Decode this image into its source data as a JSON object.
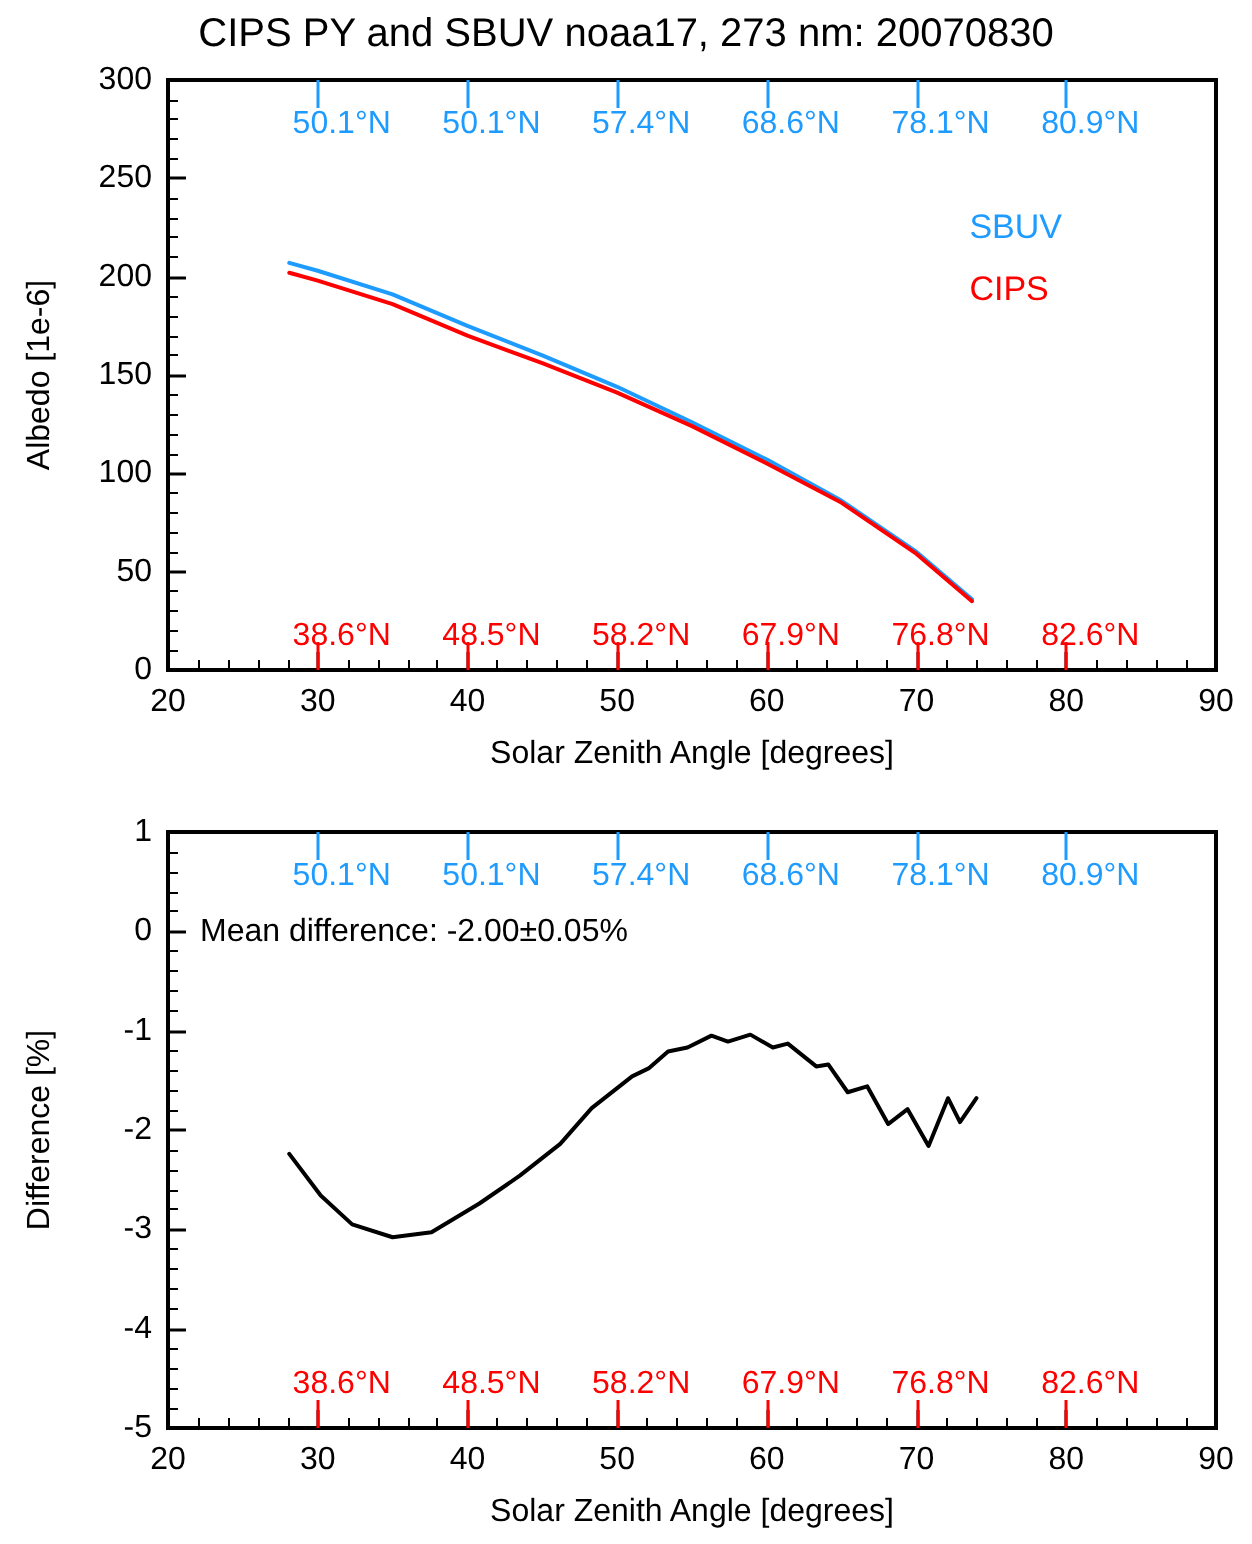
{
  "chart_data": [
    {
      "type": "line",
      "title": "CIPS PY and SBUV noaa17, 273 nm: 20070830",
      "xlabel": "Solar Zenith Angle [degrees]",
      "ylabel": "Albedo [1e-6]",
      "xlim": [
        20,
        90
      ],
      "xticks": [
        20,
        30,
        40,
        50,
        60,
        70,
        80,
        90
      ],
      "ylim": [
        0,
        300
      ],
      "yticks": [
        0,
        50,
        100,
        150,
        200,
        250,
        300
      ],
      "annotations": [
        "50.1°N",
        "50.1°N",
        "57.4°N",
        "68.6°N",
        "78.1°N",
        "80.9°N",
        "38.6°N",
        "48.5°N",
        "58.2°N",
        "67.9°N",
        "76.8°N",
        "82.6°N"
      ],
      "legend": "top right",
      "grid": false,
      "marker": "none",
      "line_style": "solid",
      "series": [
        {
          "name": "SBUV",
          "color": "#1e9bff",
          "x": [
            28.1,
            30,
            35,
            40,
            45,
            50,
            55,
            60,
            65,
            70,
            73.7
          ],
          "values": [
            207,
            203,
            191,
            175,
            160,
            144,
            126,
            107,
            86,
            60,
            36
          ]
        },
        {
          "name": "CIPS",
          "color": "#ff0000",
          "x": [
            28.1,
            30,
            35,
            40,
            45,
            50,
            55,
            60,
            65,
            70,
            73.7
          ],
          "values": [
            202,
            198,
            186,
            170,
            156,
            141,
            124,
            105,
            85,
            59,
            35
          ]
        }
      ]
    },
    {
      "type": "line",
      "xlabel": "Solar Zenith Angle [degrees]",
      "ylabel": "Difference [%]",
      "xlim": [
        20,
        90
      ],
      "xticks": [
        20,
        30,
        40,
        50,
        60,
        70,
        80,
        90
      ],
      "ylim": [
        -5,
        1
      ],
      "yticks": [
        -5,
        -4,
        -3,
        -2,
        -1,
        0,
        1
      ],
      "annotations": [
        "50.1°N",
        "50.1°N",
        "57.4°N",
        "68.6°N",
        "78.1°N",
        "80.9°N",
        "38.6°N",
        "48.5°N",
        "58.2°N",
        "67.9°N",
        "76.8°N",
        "82.6°N",
        "Mean difference: -2.00±0.05%"
      ],
      "grid": false,
      "marker": "none",
      "line_style": "solid",
      "series": [
        {
          "color": "#000000",
          "x": [
            28.1,
            30.2,
            32.3,
            35.0,
            37.6,
            40.8,
            43.5,
            46.2,
            48.3,
            51.0,
            52.1,
            53.4,
            54.7,
            56.3,
            57.4,
            58.9,
            60.4,
            61.4,
            63.3,
            64.1,
            65.4,
            66.7,
            68.1,
            69.4,
            70.8,
            72.1,
            72.9,
            74.0
          ],
          "values": [
            -2.24,
            -2.66,
            -2.95,
            -3.08,
            -3.03,
            -2.74,
            -2.46,
            -2.14,
            -1.78,
            -1.46,
            -1.38,
            -1.21,
            -1.17,
            -1.05,
            -1.11,
            -1.04,
            -1.17,
            -1.13,
            -1.36,
            -1.34,
            -1.62,
            -1.56,
            -1.94,
            -1.79,
            -2.16,
            -1.68,
            -1.92,
            -1.68
          ]
        }
      ]
    }
  ]
}
